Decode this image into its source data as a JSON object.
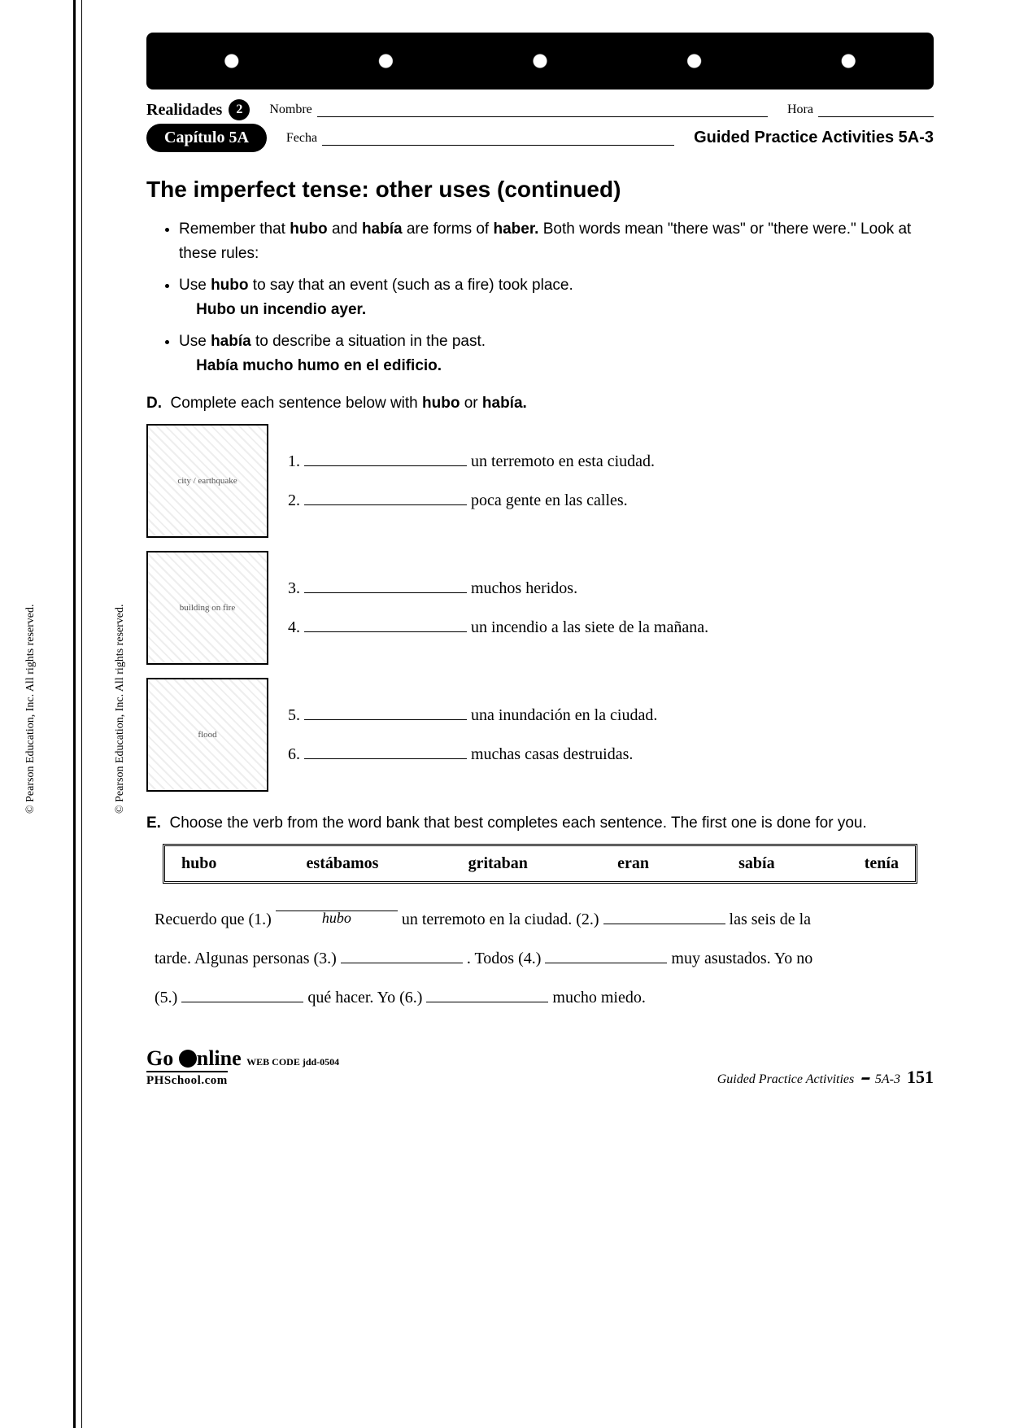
{
  "sidecopy1": "© Pearson Education, Inc. All rights reserved.",
  "sidecopy2": "© Pearson Education, Inc. All rights reserved.",
  "header": {
    "series": "Realidades",
    "level": "2",
    "nombre_label": "Nombre",
    "hora_label": "Hora",
    "fecha_label": "Fecha",
    "capitulo": "Capítulo 5A",
    "gpact": "Guided Practice Activities 5A-3"
  },
  "title": "The imperfect tense: other uses (continued)",
  "rules": [
    "Remember that <b>hubo</b> and <b>había</b> are forms of <b>haber.</b> Both words mean \"there was\" or \"there were.\" Look at these rules:",
    "Use <b>hubo</b> to say that an event (such as a fire) took place.<br>&nbsp;&nbsp;&nbsp;&nbsp;<b>Hubo un incendio ayer.</b>",
    "Use <b>había</b> to describe a situation in the past.<br>&nbsp;&nbsp;&nbsp;&nbsp;<b>Había mucho humo en el edificio.</b>"
  ],
  "sectionD": {
    "label": "<b>D.</b>&nbsp; Complete each sentence below with <b>hubo</b> or <b>había.</b>",
    "groups": [
      {
        "img_alt": "city / earthquake",
        "items": [
          {
            "n": "1.",
            "text": "un terremoto en esta ciudad."
          },
          {
            "n": "2.",
            "text": "poca gente en las calles."
          }
        ]
      },
      {
        "img_alt": "building on fire",
        "items": [
          {
            "n": "3.",
            "text": "muchos heridos."
          },
          {
            "n": "4.",
            "text": "un incendio a las siete de la mañana."
          }
        ]
      },
      {
        "img_alt": "flood",
        "items": [
          {
            "n": "5.",
            "text": "una inundación en la ciudad."
          },
          {
            "n": "6.",
            "text": "muchas casas destruidas."
          }
        ]
      }
    ]
  },
  "sectionE": {
    "label": "<b>E.</b>&nbsp; Choose the verb from the word bank that best completes each sentence. The first one is done for you.",
    "wordbank": [
      "hubo",
      "estábamos",
      "gritaban",
      "eran",
      "sabía",
      "tenía"
    ],
    "para_parts": {
      "p1a": "Recuerdo que (1.) ",
      "ans1": "hubo",
      "p1b": " un terremoto en la ciudad. (2.) ",
      "p1c": " las seis de la",
      "p2a": "tarde. Algunas personas (3.) ",
      "p2b": ". Todos (4.) ",
      "p2c": " muy asustados. Yo no",
      "p3a": "(5.) ",
      "p3b": " qué hacer. Yo (6.) ",
      "p3c": " mucho miedo."
    }
  },
  "footer": {
    "go_online": "Go ",
    "go_online2": "nline",
    "webcode": "WEB CODE jdd-0504",
    "phschool": "PHSchool.com",
    "right_italic": "Guided Practice Activities",
    "right_code": "5A-3",
    "page": "151"
  }
}
